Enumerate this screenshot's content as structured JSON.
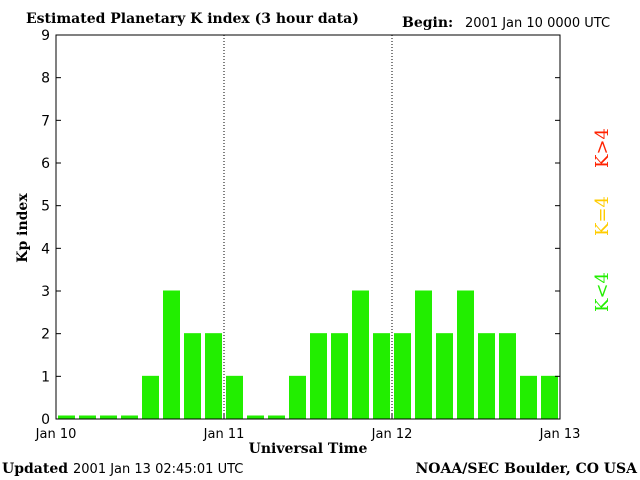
{
  "header": {
    "title": "Estimated Planetary K index (3 hour data)",
    "begin_label": "Begin:",
    "begin_value": "2001 Jan 10 0000 UTC"
  },
  "footer": {
    "updated_label": "Updated",
    "updated_value": "2001 Jan 13 02:45:01 UTC",
    "source": "NOAA/SEC Boulder, CO USA"
  },
  "legend": [
    {
      "label": "K>4",
      "color": "#ff2200"
    },
    {
      "label": "K=4",
      "color": "#ffcc00"
    },
    {
      "label": "K<4",
      "color": "#22ee00"
    }
  ],
  "chart_data": {
    "type": "bar",
    "xlabel": "Universal Time",
    "ylabel": "Kp index",
    "ylim": [
      0,
      9
    ],
    "y_ticks": [
      "0",
      "1",
      "2",
      "3",
      "4",
      "5",
      "6",
      "7",
      "8",
      "9"
    ],
    "day_labels": [
      "Jan 10",
      "Jan 11",
      "Jan 12",
      "Jan 13"
    ],
    "values": [
      0,
      0,
      0,
      0,
      1,
      3,
      2,
      2,
      1,
      0,
      0,
      1,
      2,
      2,
      3,
      2,
      2,
      3,
      2,
      3,
      2,
      2,
      1,
      1
    ],
    "bar_color": "#22ee00",
    "grid": false
  }
}
